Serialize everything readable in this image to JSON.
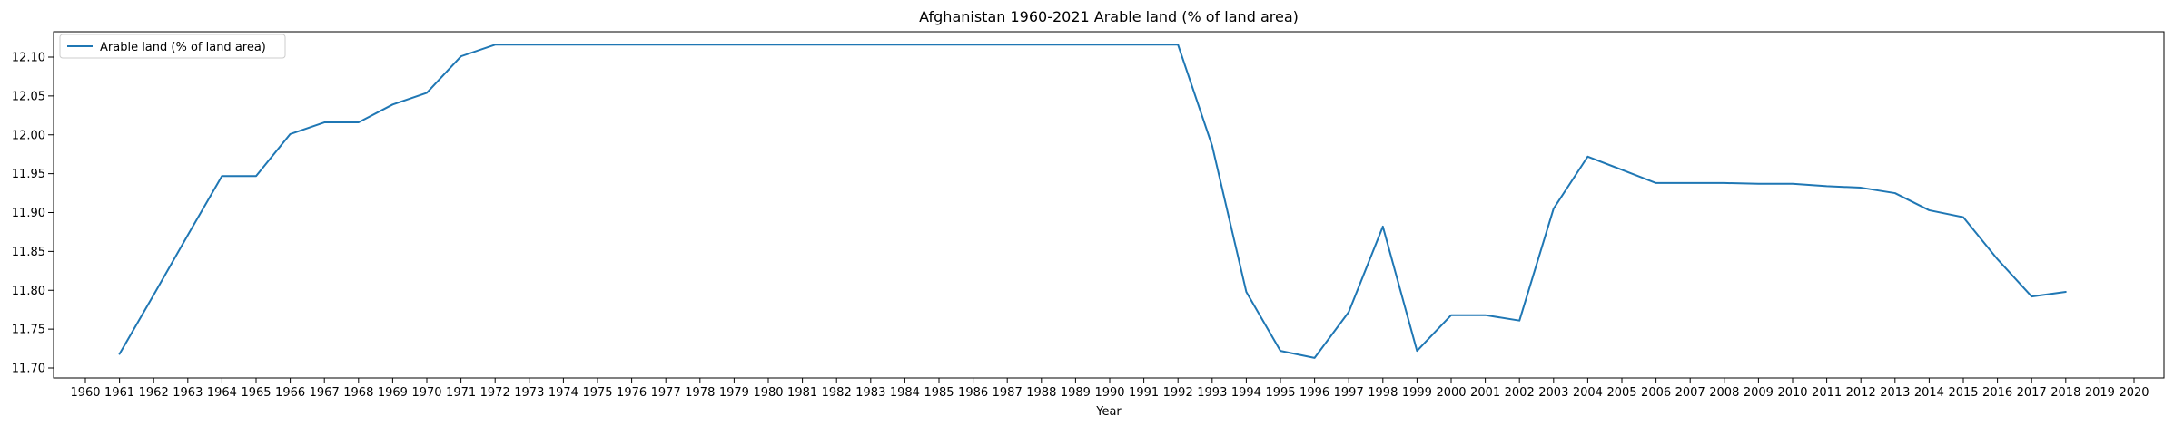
{
  "chart_data": {
    "type": "line",
    "title": "Afghanistan 1960-2021 Arable land (% of land area)",
    "xlabel": "Year",
    "ylabel": "",
    "x_ticks": [
      "1960",
      "1961",
      "1962",
      "1963",
      "1964",
      "1965",
      "1966",
      "1967",
      "1968",
      "1969",
      "1970",
      "1971",
      "1972",
      "1973",
      "1974",
      "1975",
      "1976",
      "1977",
      "1978",
      "1979",
      "1980",
      "1981",
      "1982",
      "1983",
      "1984",
      "1985",
      "1986",
      "1987",
      "1988",
      "1989",
      "1990",
      "1991",
      "1992",
      "1993",
      "1994",
      "1995",
      "1996",
      "1997",
      "1998",
      "1999",
      "2000",
      "2001",
      "2002",
      "2003",
      "2004",
      "2005",
      "2006",
      "2007",
      "2008",
      "2009",
      "2010",
      "2011",
      "2012",
      "2013",
      "2014",
      "2015",
      "2016",
      "2017",
      "2018",
      "2019",
      "2020"
    ],
    "y_ticks": [
      "11.70",
      "11.75",
      "11.80",
      "11.85",
      "11.90",
      "11.95",
      "12.00",
      "12.05",
      "12.10"
    ],
    "xlim": [
      1960,
      2020
    ],
    "ylim": [
      11.7,
      12.1
    ],
    "grid": false,
    "legend_position": "top-left",
    "series": [
      {
        "name": "Arable land (% of land area)",
        "color": "#1f77b4",
        "x": [
          1961,
          1962,
          1963,
          1964,
          1965,
          1966,
          1967,
          1968,
          1969,
          1970,
          1971,
          1972,
          1973,
          1974,
          1975,
          1976,
          1977,
          1978,
          1979,
          1980,
          1981,
          1982,
          1983,
          1984,
          1985,
          1986,
          1987,
          1988,
          1989,
          1990,
          1991,
          1992,
          1993,
          1994,
          1995,
          1996,
          1997,
          1998,
          1999,
          2000,
          2001,
          2002,
          2003,
          2004,
          2005,
          2006,
          2007,
          2008,
          2009,
          2010,
          2011,
          2012,
          2013,
          2014,
          2015,
          2016,
          2017,
          2018
        ],
        "values": [
          11.718,
          11.794,
          11.871,
          11.947,
          11.947,
          12.001,
          12.016,
          12.016,
          12.039,
          12.054,
          12.101,
          12.116,
          12.116,
          12.116,
          12.116,
          12.116,
          12.116,
          12.116,
          12.116,
          12.116,
          12.116,
          12.116,
          12.116,
          12.116,
          12.116,
          12.116,
          12.116,
          12.116,
          12.116,
          12.116,
          12.116,
          12.116,
          11.986,
          11.798,
          11.722,
          11.713,
          11.772,
          11.882,
          11.722,
          11.768,
          11.768,
          11.761,
          11.905,
          11.972,
          11.955,
          11.938,
          11.938,
          11.938,
          11.937,
          11.937,
          11.934,
          11.932,
          11.925,
          11.903,
          11.894,
          11.84,
          11.792,
          11.798
        ]
      }
    ]
  }
}
